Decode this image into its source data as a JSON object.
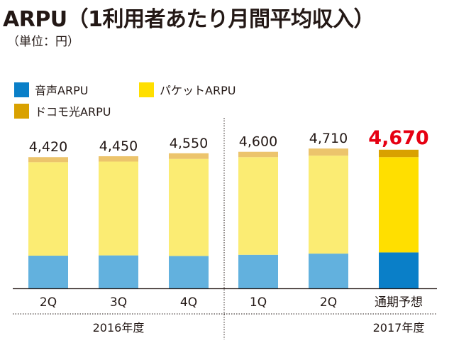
{
  "title": "ARPU（1利用者あたり月間平均収入）",
  "unit": "（単位：円）",
  "colors": {
    "voice": "#62b1de",
    "packet": "#fbec73",
    "docomo_hikari": "#ecc46c",
    "forecast_voice": "#0a7fc8",
    "forecast_packet": "#ffdf00",
    "forecast_docomo_hikari": "#d9a100",
    "forecast_label": "#e60012"
  },
  "legend": [
    {
      "label": "音声ARPU",
      "color_key": "forecast_voice"
    },
    {
      "label": "パケットARPU",
      "color_key": "forecast_packet"
    },
    {
      "label": "ドコモ光ARPU",
      "color_key": "forecast_docomo_hikari"
    }
  ],
  "chart_data": {
    "type": "bar",
    "stacked": true,
    "title": "ARPU（1利用者あたり月間平均収入）",
    "unit": "（単位：円）",
    "categories": [
      "2Q",
      "3Q",
      "4Q",
      "1Q",
      "2Q",
      "通期予想"
    ],
    "groups": [
      {
        "label": "2016年度",
        "categories": [
          0,
          1,
          2
        ]
      },
      {
        "label": "2017年度",
        "categories": [
          3,
          4,
          5
        ]
      }
    ],
    "series": [
      {
        "name": "音声ARPU",
        "values": [
          1100,
          1110,
          1090,
          1130,
          1170,
          1210
        ]
      },
      {
        "name": "パケットARPU",
        "values": [
          3150,
          3160,
          3270,
          3290,
          3300,
          3210
        ]
      },
      {
        "name": "ドコモ光ARPU",
        "values": [
          170,
          180,
          190,
          180,
          240,
          250
        ]
      }
    ],
    "totals": [
      "4,420",
      "4,450",
      "4,550",
      "4,600",
      "4,710",
      "4,670"
    ],
    "highlight_index": 5,
    "ylim": [
      0,
      5000
    ],
    "grid": false,
    "legend_position": "top-left"
  }
}
